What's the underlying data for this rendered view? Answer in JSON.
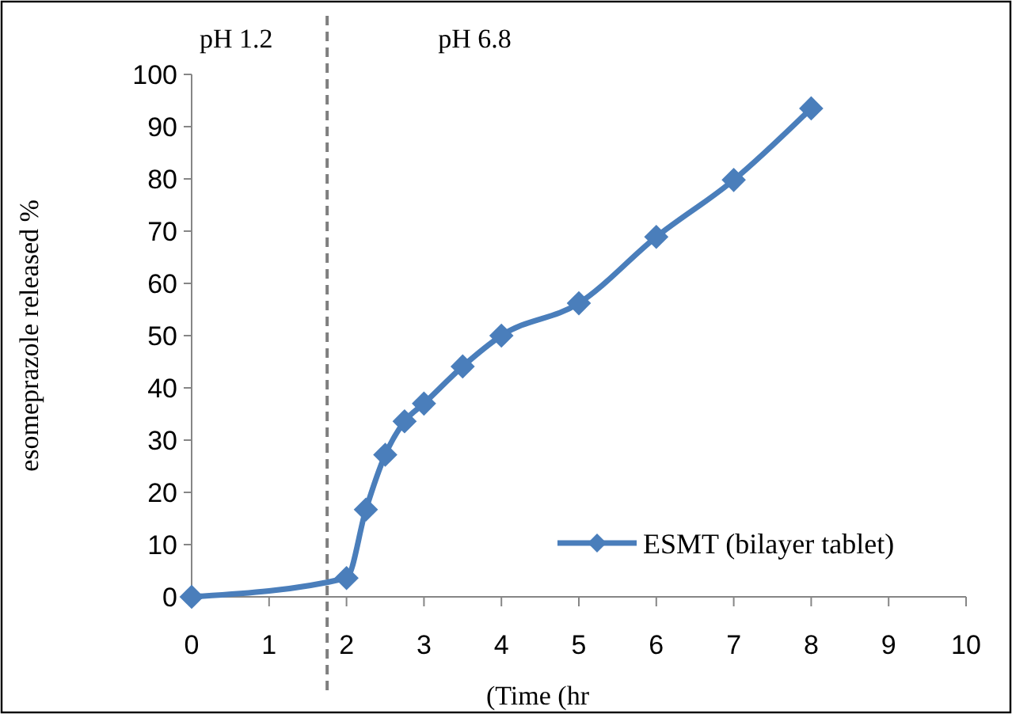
{
  "chart_data": {
    "type": "line",
    "xlabel": "(Time (hr",
    "ylabel": "esomeprazole released %",
    "x": [
      0,
      2,
      2.25,
      2.5,
      2.75,
      3,
      3.5,
      4,
      5,
      6,
      7,
      8
    ],
    "series": [
      {
        "name": "ESMT (bilayer tablet)",
        "color": "#4a7ebb",
        "values": [
          0,
          3.6,
          16.7,
          27.2,
          33.6,
          37,
          44.1,
          50,
          56.2,
          68.9,
          79.8,
          93.5
        ]
      }
    ],
    "xlim": [
      0,
      10
    ],
    "xticks": [
      0,
      1,
      2,
      3,
      4,
      5,
      6,
      7,
      8,
      9,
      10
    ],
    "ylim": [
      0,
      100
    ],
    "yticks": [
      0,
      10,
      20,
      30,
      40,
      50,
      60,
      70,
      80,
      90,
      100
    ],
    "marker": "diamond",
    "line_style": "solid",
    "grid": false,
    "legend": "bottom right",
    "ref_lines": [
      {
        "axis": "x",
        "value": 1.75,
        "color": "#7f7f7f",
        "line_style": "dashed"
      }
    ],
    "annotations": [
      "pH 1.2",
      "pH 6.8"
    ]
  }
}
